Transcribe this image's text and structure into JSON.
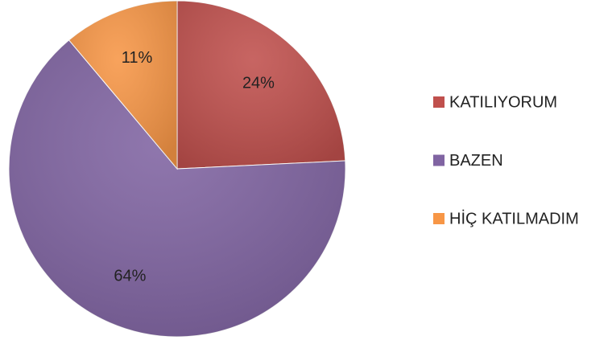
{
  "chart_data": {
    "type": "pie",
    "categories": [
      "KATILIYORUM",
      "BAZEN",
      "HİÇ KATILMADIM"
    ],
    "values": [
      24,
      64,
      11
    ],
    "value_labels": [
      "24%",
      "64%",
      "11%"
    ],
    "colors": [
      "#c0504d",
      "#8064a2",
      "#f79646"
    ],
    "legend": "right"
  }
}
